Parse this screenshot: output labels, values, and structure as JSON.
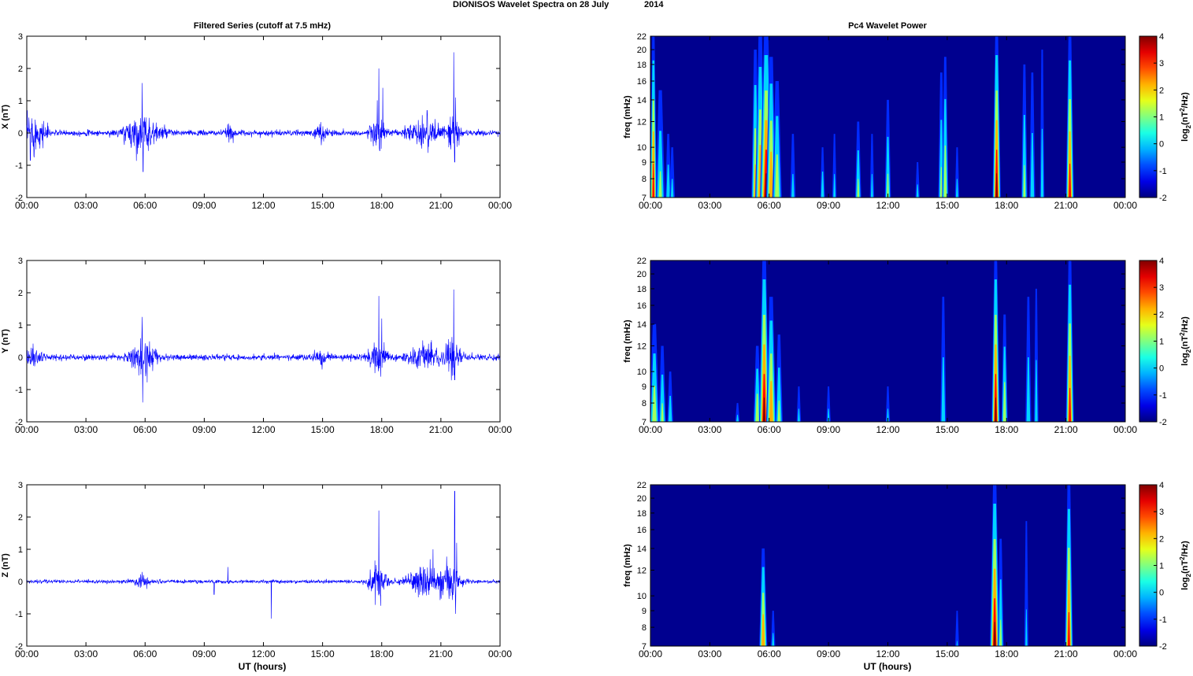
{
  "figure": {
    "title_left": "DIONISOS Wavelet Spectra on 28 July",
    "title_right": "2014",
    "left_title": "Filtered Series (cutoff at 7.5 mHz)",
    "right_title": "Pc4 Wavelet Power",
    "xlabel": "UT (hours)",
    "colors": {
      "trace": "#0000ff",
      "background": "#00008f"
    }
  },
  "chart_data": [
    {
      "type": "line",
      "panel": "X time series",
      "ylabel": "X (nT)",
      "ylim": [
        -2,
        3
      ],
      "yticks": [
        "3",
        "2",
        "1",
        "0",
        "-1",
        "-2"
      ],
      "xlim": [
        0,
        24
      ],
      "xticks": [
        "00:00",
        "03:00",
        "06:00",
        "09:00",
        "12:00",
        "15:00",
        "18:00",
        "21:00",
        "00:00"
      ],
      "noise_base": 0.08,
      "bursts": [
        {
          "t": 0.2,
          "w": 0.25,
          "a": 0.45
        },
        {
          "t": 0.45,
          "w": 0.4,
          "a": 0.28
        },
        {
          "t": 0.95,
          "w": 0.2,
          "a": 0.22
        },
        {
          "t": 5.5,
          "w": 0.6,
          "a": 0.35
        },
        {
          "t": 6.3,
          "w": 0.7,
          "a": 0.25
        },
        {
          "t": 10.3,
          "w": 0.2,
          "a": 0.18
        },
        {
          "t": 14.9,
          "w": 0.3,
          "a": 0.2
        },
        {
          "t": 17.8,
          "w": 0.35,
          "a": 0.55
        },
        {
          "t": 20.2,
          "w": 0.8,
          "a": 0.35
        },
        {
          "t": 21.6,
          "w": 0.3,
          "a": 0.55
        }
      ],
      "spikes": [
        {
          "t": 5.85,
          "v": 1.55
        },
        {
          "t": 5.9,
          "v": -1.2
        },
        {
          "t": 0.18,
          "v": -0.85
        },
        {
          "t": 17.85,
          "v": 2.0
        },
        {
          "t": 17.9,
          "v": -0.55
        },
        {
          "t": 18.05,
          "v": 1.4
        },
        {
          "t": 21.65,
          "v": 2.5
        },
        {
          "t": 21.75,
          "v": 1.1
        },
        {
          "t": 21.7,
          "v": -0.9
        },
        {
          "t": 20.3,
          "v": 0.7
        }
      ]
    },
    {
      "type": "line",
      "panel": "Y time series",
      "ylabel": "Y (nT)",
      "ylim": [
        -2,
        3
      ],
      "yticks": [
        "3",
        "2",
        "1",
        "0",
        "-1",
        "-2"
      ],
      "xlim": [
        0,
        24
      ],
      "xticks": [
        "00:00",
        "03:00",
        "06:00",
        "09:00",
        "12:00",
        "15:00",
        "18:00",
        "21:00",
        "00:00"
      ],
      "noise_base": 0.08,
      "bursts": [
        {
          "t": 0.3,
          "w": 0.4,
          "a": 0.3
        },
        {
          "t": 5.7,
          "w": 0.5,
          "a": 0.32
        },
        {
          "t": 6.2,
          "w": 0.5,
          "a": 0.25
        },
        {
          "t": 14.9,
          "w": 0.3,
          "a": 0.18
        },
        {
          "t": 17.8,
          "w": 0.4,
          "a": 0.5
        },
        {
          "t": 20.2,
          "w": 0.8,
          "a": 0.33
        },
        {
          "t": 21.6,
          "w": 0.3,
          "a": 0.5
        }
      ],
      "spikes": [
        {
          "t": 5.85,
          "v": 1.25
        },
        {
          "t": 5.88,
          "v": -1.4
        },
        {
          "t": 17.85,
          "v": 1.9
        },
        {
          "t": 18.0,
          "v": 1.2
        },
        {
          "t": 21.65,
          "v": 2.1
        },
        {
          "t": 21.7,
          "v": -0.7
        },
        {
          "t": 17.95,
          "v": -0.6
        }
      ]
    },
    {
      "type": "line",
      "panel": "Z time series",
      "ylabel": "Z (nT)",
      "ylim": [
        -2,
        3
      ],
      "yticks": [
        "3",
        "2",
        "1",
        "0",
        "-1",
        "-2"
      ],
      "xlim": [
        0,
        24
      ],
      "xticks": [
        "00:00",
        "03:00",
        "06:00",
        "09:00",
        "12:00",
        "15:00",
        "18:00",
        "21:00",
        "00:00"
      ],
      "noise_base": 0.05,
      "bursts": [
        {
          "t": 5.8,
          "w": 0.4,
          "a": 0.15
        },
        {
          "t": 17.8,
          "w": 0.4,
          "a": 0.55
        },
        {
          "t": 20.2,
          "w": 0.8,
          "a": 0.45
        },
        {
          "t": 21.5,
          "w": 0.5,
          "a": 0.45
        }
      ],
      "spikes": [
        {
          "t": 5.85,
          "v": 0.3
        },
        {
          "t": 10.2,
          "v": 0.45
        },
        {
          "t": 12.4,
          "v": -1.15
        },
        {
          "t": 9.5,
          "v": -0.4
        },
        {
          "t": 17.85,
          "v": 2.2
        },
        {
          "t": 17.95,
          "v": -0.75
        },
        {
          "t": 21.7,
          "v": 2.8
        },
        {
          "t": 21.8,
          "v": 1.2
        },
        {
          "t": 21.75,
          "v": -1.0
        },
        {
          "t": 20.6,
          "v": 1.0
        }
      ]
    },
    {
      "type": "heatmap",
      "panel": "X wavelet power",
      "ylabel": "freq (mHz)",
      "ylim": [
        7,
        22
      ],
      "yscale": "log",
      "yticks": [
        "22",
        "20",
        "18",
        "16",
        "14",
        "12",
        "10",
        "9",
        "8",
        "7"
      ],
      "xlim": [
        0,
        24
      ],
      "xticks": [
        "00:00",
        "03:00",
        "06:00",
        "09:00",
        "12:00",
        "15:00",
        "18:00",
        "21:00",
        "00:00"
      ],
      "colorbar": {
        "label": "log2(nT2/Hz)",
        "range": [
          -2,
          4
        ],
        "ticks": [
          "4",
          "3",
          "2",
          "1",
          "0",
          "-1",
          "-2"
        ]
      },
      "streaks": [
        {
          "t": 0.15,
          "w": 0.1,
          "p": 3.5,
          "f": 22
        },
        {
          "t": 0.5,
          "w": 0.15,
          "p": 1.5,
          "f": 15
        },
        {
          "t": 0.9,
          "w": 0.1,
          "p": 1.0,
          "f": 11
        },
        {
          "t": 1.1,
          "w": 0.1,
          "p": 0.5,
          "f": 10
        },
        {
          "t": 5.3,
          "w": 0.12,
          "p": 2.5,
          "f": 20
        },
        {
          "t": 5.55,
          "w": 0.15,
          "p": 3.0,
          "f": 22
        },
        {
          "t": 5.85,
          "w": 0.18,
          "p": 4.0,
          "f": 22
        },
        {
          "t": 6.1,
          "w": 0.15,
          "p": 3.0,
          "f": 19
        },
        {
          "t": 6.4,
          "w": 0.15,
          "p": 2.0,
          "f": 16
        },
        {
          "t": 7.2,
          "w": 0.1,
          "p": 0.5,
          "f": 11
        },
        {
          "t": 8.7,
          "w": 0.08,
          "p": 1.0,
          "f": 10
        },
        {
          "t": 9.3,
          "w": 0.08,
          "p": 0.5,
          "f": 11
        },
        {
          "t": 10.5,
          "w": 0.1,
          "p": 1.5,
          "f": 12
        },
        {
          "t": 11.2,
          "w": 0.08,
          "p": 0.5,
          "f": 11
        },
        {
          "t": 12.0,
          "w": 0.1,
          "p": 1.5,
          "f": 14
        },
        {
          "t": 14.7,
          "w": 0.1,
          "p": 1.5,
          "f": 17
        },
        {
          "t": 14.9,
          "w": 0.1,
          "p": 2.0,
          "f": 19
        },
        {
          "t": 17.5,
          "w": 0.12,
          "p": 4.0,
          "f": 22
        },
        {
          "t": 18.9,
          "w": 0.1,
          "p": 1.5,
          "f": 18
        },
        {
          "t": 19.3,
          "w": 0.1,
          "p": 1.0,
          "f": 17
        },
        {
          "t": 19.8,
          "w": 0.08,
          "p": 0.8,
          "f": 20
        },
        {
          "t": 21.2,
          "w": 0.12,
          "p": 3.5,
          "f": 22
        },
        {
          "t": 13.5,
          "w": 0.08,
          "p": 0.5,
          "f": 9
        },
        {
          "t": 15.5,
          "w": 0.08,
          "p": 0.5,
          "f": 10
        }
      ]
    },
    {
      "type": "heatmap",
      "panel": "Y wavelet power",
      "ylabel": "freq (mHz)",
      "ylim": [
        7,
        22
      ],
      "yscale": "log",
      "yticks": [
        "22",
        "20",
        "18",
        "16",
        "14",
        "12",
        "10",
        "9",
        "8",
        "7"
      ],
      "xlim": [
        0,
        24
      ],
      "xticks": [
        "00:00",
        "03:00",
        "06:00",
        "09:00",
        "12:00",
        "15:00",
        "18:00",
        "21:00",
        "00:00"
      ],
      "colorbar": {
        "label": "log2(nT2/Hz)",
        "range": [
          -2,
          4
        ],
        "ticks": [
          "4",
          "3",
          "2",
          "1",
          "0",
          "-1",
          "-2"
        ]
      },
      "streaks": [
        {
          "t": 0.2,
          "w": 0.15,
          "p": 2.0,
          "f": 14
        },
        {
          "t": 0.6,
          "w": 0.12,
          "p": 1.5,
          "f": 12
        },
        {
          "t": 1.0,
          "w": 0.1,
          "p": 1.0,
          "f": 10
        },
        {
          "t": 4.4,
          "w": 0.08,
          "p": 0.5,
          "f": 8
        },
        {
          "t": 5.4,
          "w": 0.12,
          "p": 2.0,
          "f": 12
        },
        {
          "t": 5.75,
          "w": 0.15,
          "p": 4.0,
          "f": 22
        },
        {
          "t": 6.1,
          "w": 0.15,
          "p": 3.0,
          "f": 17
        },
        {
          "t": 6.5,
          "w": 0.12,
          "p": 1.5,
          "f": 13
        },
        {
          "t": 7.5,
          "w": 0.08,
          "p": 0.5,
          "f": 9
        },
        {
          "t": 14.8,
          "w": 0.1,
          "p": 1.0,
          "f": 17
        },
        {
          "t": 17.45,
          "w": 0.12,
          "p": 4.0,
          "f": 22
        },
        {
          "t": 17.9,
          "w": 0.1,
          "p": 2.0,
          "f": 15
        },
        {
          "t": 19.1,
          "w": 0.1,
          "p": 1.0,
          "f": 17
        },
        {
          "t": 19.5,
          "w": 0.08,
          "p": 0.8,
          "f": 18
        },
        {
          "t": 21.2,
          "w": 0.12,
          "p": 3.5,
          "f": 22
        },
        {
          "t": 12.0,
          "w": 0.08,
          "p": 0.5,
          "f": 9
        },
        {
          "t": 9.0,
          "w": 0.08,
          "p": 0.5,
          "f": 9
        }
      ]
    },
    {
      "type": "heatmap",
      "panel": "Z wavelet power",
      "ylabel": "freq (mHz)",
      "ylim": [
        7,
        22
      ],
      "yscale": "log",
      "yticks": [
        "22",
        "20",
        "18",
        "16",
        "14",
        "12",
        "10",
        "9",
        "8",
        "7"
      ],
      "xlim": [
        0,
        24
      ],
      "xticks": [
        "00:00",
        "03:00",
        "06:00",
        "09:00",
        "12:00",
        "15:00",
        "18:00",
        "21:00",
        "00:00"
      ],
      "colorbar": {
        "label": "log2(nT2/Hz)",
        "range": [
          -2,
          4
        ],
        "ticks": [
          "4",
          "3",
          "2",
          "1",
          "0",
          "-1",
          "-2"
        ]
      },
      "streaks": [
        {
          "t": 5.7,
          "w": 0.12,
          "p": 3.0,
          "f": 14
        },
        {
          "t": 6.2,
          "w": 0.08,
          "p": 0.5,
          "f": 9
        },
        {
          "t": 17.4,
          "w": 0.14,
          "p": 4.0,
          "f": 22
        },
        {
          "t": 17.7,
          "w": 0.1,
          "p": 1.5,
          "f": 15
        },
        {
          "t": 19.0,
          "w": 0.08,
          "p": 0.3,
          "f": 17
        },
        {
          "t": 21.15,
          "w": 0.12,
          "p": 3.5,
          "f": 22
        },
        {
          "t": 15.5,
          "w": 0.08,
          "p": 0.0,
          "f": 9
        }
      ]
    }
  ]
}
